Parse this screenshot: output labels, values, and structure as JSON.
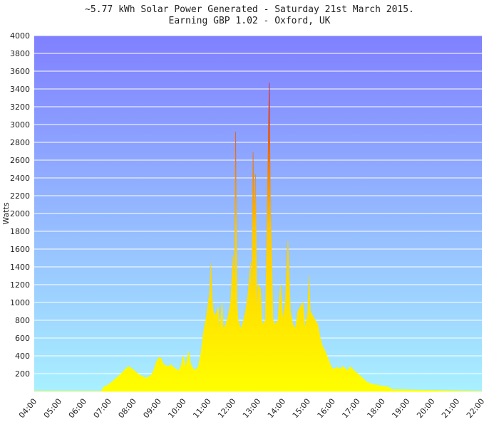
{
  "title": "~5.77 kWh Solar Power Generated - Saturday 21st March 2015.",
  "subtitle": "Earning GBP 1.02 - Oxford, UK",
  "colors": {
    "bg_top": "#8080ff",
    "bg_bottom": "#a8f0ff",
    "fill_bottom": "#ffff00",
    "fill_mid": "#ffc800",
    "fill_top": "#e01010",
    "grid": "#ffffff"
  },
  "chart_data": {
    "type": "area",
    "title": "~5.77 kWh Solar Power Generated - Saturday 21st March 2015.",
    "subtitle": "Earning GBP 1.02 - Oxford, UK",
    "xlabel": "",
    "ylabel": "Watts",
    "xlim": [
      4,
      22
    ],
    "ylim": [
      0,
      4000
    ],
    "y_ticks": [
      200,
      400,
      600,
      800,
      1000,
      1200,
      1400,
      1600,
      1800,
      2000,
      2200,
      2400,
      2600,
      2800,
      3000,
      3200,
      3400,
      3600,
      3800,
      4000
    ],
    "x_ticks": [
      "04:00",
      "05:00",
      "06:00",
      "07:00",
      "08:00",
      "09:00",
      "10:00",
      "11:00",
      "12:00",
      "13:00",
      "14:00",
      "15:00",
      "16:00",
      "17:00",
      "18:00",
      "19:00",
      "20:00",
      "21:00",
      "22:00"
    ],
    "grid": true,
    "series": [
      {
        "x": [
          4.0,
          6.7,
          6.8,
          6.9,
          7.1,
          7.3,
          7.5,
          7.6,
          7.7,
          7.8,
          8.0,
          8.2,
          8.4,
          8.5,
          8.7,
          8.8,
          8.9,
          9.0,
          9.1,
          9.2,
          9.4,
          9.5,
          9.6,
          9.7,
          9.8,
          9.9,
          10.0,
          10.1,
          10.2,
          10.3,
          10.4,
          10.5,
          10.6,
          10.7,
          10.8,
          10.9,
          11.0,
          11.05,
          11.1,
          11.15,
          11.2,
          11.3,
          11.4,
          11.45,
          11.5,
          11.55,
          11.6,
          11.7,
          11.8,
          11.9,
          12.0,
          12.05,
          12.1,
          12.15,
          12.2,
          12.3,
          12.4,
          12.5,
          12.6,
          12.7,
          12.75,
          12.8,
          12.85,
          12.9,
          12.95,
          13.0,
          13.1,
          13.15,
          13.2,
          13.3,
          13.45,
          13.5,
          13.55,
          13.6,
          13.7,
          13.8,
          13.9,
          14.0,
          14.1,
          14.2,
          14.3,
          14.4,
          14.5,
          14.6,
          14.7,
          14.8,
          14.9,
          15.0,
          15.05,
          15.1,
          15.2,
          15.3,
          15.4,
          15.5,
          15.6,
          15.7,
          15.8,
          15.9,
          16.0,
          16.1,
          16.2,
          16.3,
          16.4,
          16.5,
          16.6,
          16.7,
          16.8,
          17.0,
          17.2,
          17.4,
          17.6,
          17.8,
          18.0,
          18.2,
          18.3,
          18.4,
          22.0
        ],
        "y": [
          0,
          0,
          50,
          60,
          100,
          150,
          200,
          230,
          260,
          280,
          240,
          190,
          160,
          150,
          180,
          230,
          320,
          380,
          370,
          300,
          280,
          300,
          270,
          250,
          230,
          280,
          400,
          260,
          450,
          300,
          250,
          240,
          280,
          420,
          650,
          800,
          1000,
          1100,
          1440,
          1050,
          900,
          850,
          950,
          700,
          800,
          1000,
          700,
          750,
          850,
          1000,
          1530,
          1100,
          2920,
          1000,
          800,
          700,
          780,
          900,
          1100,
          1450,
          1000,
          2690,
          1900,
          2440,
          800,
          1200,
          1150,
          800,
          750,
          800,
          3470,
          2000,
          1500,
          800,
          750,
          800,
          1200,
          800,
          1000,
          1690,
          900,
          750,
          700,
          900,
          950,
          1000,
          700,
          900,
          1300,
          900,
          850,
          800,
          750,
          600,
          500,
          450,
          380,
          300,
          250,
          260,
          270,
          250,
          280,
          260,
          230,
          280,
          250,
          200,
          150,
          100,
          80,
          70,
          60,
          50,
          40,
          20,
          0
        ]
      }
    ]
  }
}
